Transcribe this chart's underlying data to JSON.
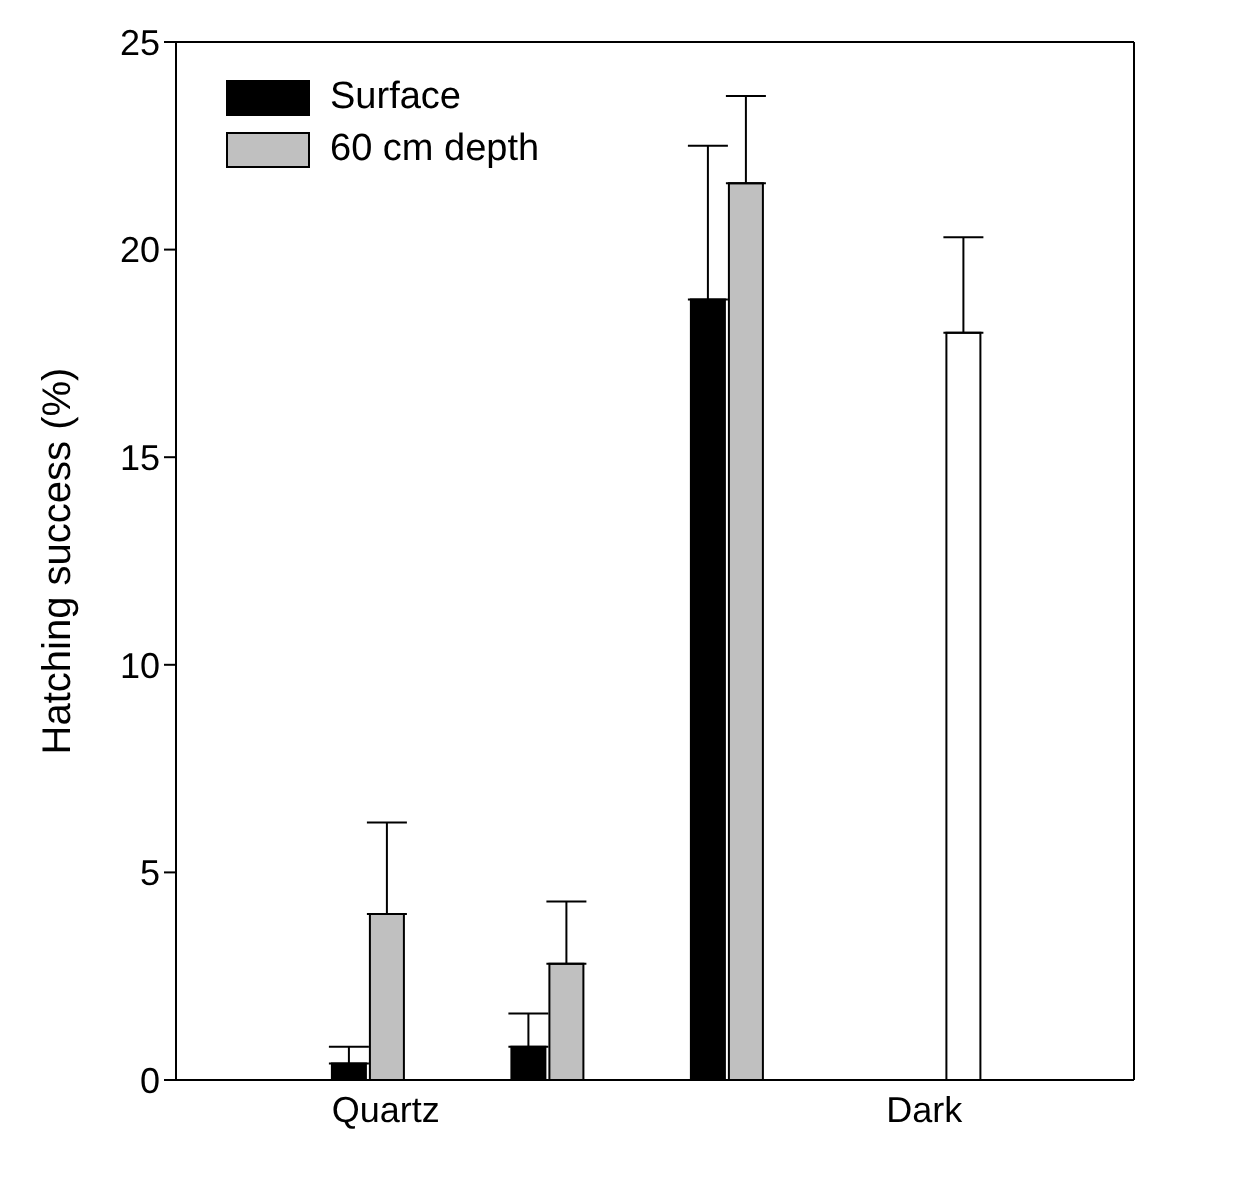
{
  "chart_data": {
    "type": "bar",
    "ylabel": "Hatching success (%)",
    "categories": [
      "Quartz",
      null,
      null,
      "Dark"
    ],
    "series": [
      {
        "name": "Surface",
        "color": "#000000",
        "values": [
          0.4,
          0.8,
          18.8,
          null
        ],
        "errors": [
          [
            0.4,
            0.8
          ],
          [
            0.8,
            1.6
          ],
          [
            18.8,
            22.5
          ],
          null
        ]
      },
      {
        "name": "60 cm depth",
        "color": "#c0c0c0",
        "values": [
          4.0,
          2.8,
          21.6,
          null
        ],
        "errors": [
          [
            4.0,
            6.2
          ],
          [
            2.8,
            4.3
          ],
          [
            21.6,
            23.7
          ],
          null
        ]
      },
      {
        "color": "#ffffff",
        "values": [
          null,
          null,
          null,
          18.0
        ],
        "errors": [
          null,
          null,
          null,
          [
            18.0,
            20.3
          ]
        ]
      }
    ],
    "ylim": [
      0,
      25
    ],
    "yticks": [
      0,
      5,
      10,
      15,
      20,
      25
    ],
    "legend": "top left"
  }
}
